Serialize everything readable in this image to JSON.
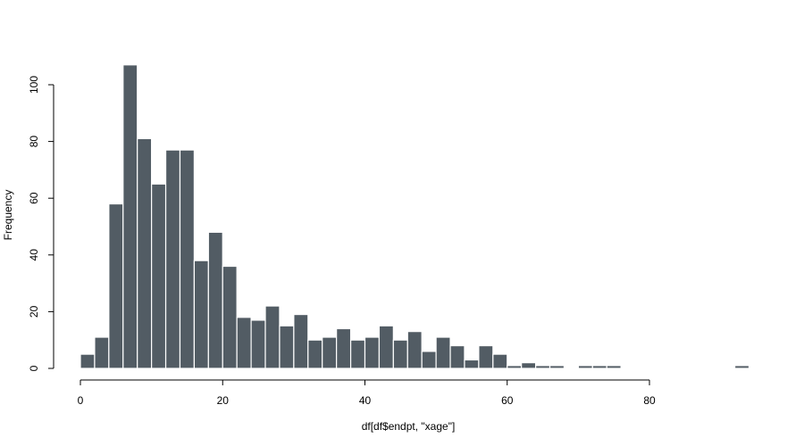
{
  "chart_data": {
    "type": "bar",
    "subtype": "histogram",
    "title": "",
    "xlabel": "df[df$endpt, \"xage\"]",
    "ylabel": "Frequency",
    "bin_width": 2,
    "bin_start": 0,
    "values": [
      5,
      11,
      58,
      107,
      81,
      65,
      77,
      77,
      38,
      48,
      36,
      18,
      17,
      22,
      15,
      19,
      10,
      11,
      14,
      10,
      11,
      15,
      10,
      13,
      6,
      11,
      8,
      3,
      8,
      5,
      1,
      2,
      1,
      1,
      0,
      1,
      1,
      1,
      0,
      0,
      0,
      0,
      0,
      0,
      0,
      0,
      1
    ],
    "xlim": [
      0,
      80
    ],
    "ylim": [
      0,
      100
    ],
    "xticks": [
      0,
      20,
      40,
      60,
      80
    ],
    "yticks": [
      0,
      20,
      40,
      60,
      80,
      100
    ],
    "grid": false,
    "bar_color": "#525c64",
    "bar_border": "#ffffff"
  }
}
